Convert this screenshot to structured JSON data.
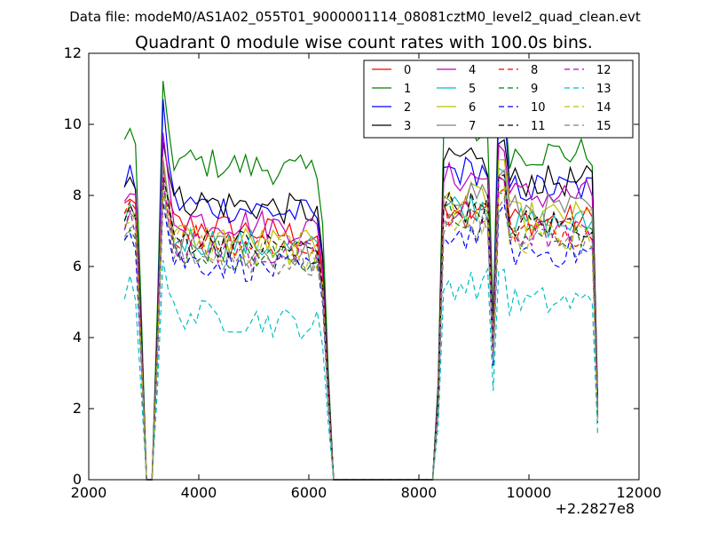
{
  "suptitle": "Data file: modeM0/AS1A02_055T01_9000001114_08081cztM0_level2_quad_clean.evt",
  "chart_data": {
    "type": "line",
    "title": "Quadrant 0 module wise count rates with 100.0s bins.",
    "xlabel": "",
    "ylabel": "",
    "xlim": [
      2000,
      12000
    ],
    "ylim": [
      0,
      12
    ],
    "x_offset_label": "+2.2827e8",
    "xticks": [
      2000,
      4000,
      6000,
      8000,
      10000,
      12000
    ],
    "xtick_labels": [
      "2000",
      "4000",
      "6000",
      "8000",
      "10000",
      "12000"
    ],
    "yticks": [
      0,
      2,
      4,
      6,
      8,
      10,
      12
    ],
    "ytick_labels": [
      "0",
      "2",
      "4",
      "6",
      "8",
      "10",
      "12"
    ],
    "legend_position": "top-right",
    "series": [
      {
        "name": "0",
        "color": "#ff0000",
        "dash": "solid",
        "base": 7.2,
        "peak": 8.6,
        "late": 7.3
      },
      {
        "name": "1",
        "color": "#008000",
        "dash": "solid",
        "base": 9.0,
        "peak": 11.0,
        "late": 9.2
      },
      {
        "name": "2",
        "color": "#0000ff",
        "dash": "solid",
        "base": 7.8,
        "peak": 10.6,
        "late": 8.2
      },
      {
        "name": "3",
        "color": "#000000",
        "dash": "solid",
        "base": 7.9,
        "peak": 9.7,
        "late": 8.4
      },
      {
        "name": "4",
        "color": "#bf00bf",
        "dash": "solid",
        "base": 7.4,
        "peak": 9.6,
        "late": 8.0
      },
      {
        "name": "5",
        "color": "#00bfbf",
        "dash": "solid",
        "base": 6.8,
        "peak": 9.0,
        "late": 7.2
      },
      {
        "name": "6",
        "color": "#bfbf00",
        "dash": "solid",
        "base": 6.9,
        "peak": 9.2,
        "late": 7.4
      },
      {
        "name": "7",
        "color": "#808080",
        "dash": "solid",
        "base": 6.6,
        "peak": 8.8,
        "late": 7.6
      },
      {
        "name": "8",
        "color": "#ff0000",
        "dash": "dashed",
        "base": 6.9,
        "peak": 8.4,
        "late": 7.0
      },
      {
        "name": "9",
        "color": "#008000",
        "dash": "dashed",
        "base": 6.5,
        "peak": 8.2,
        "late": 6.9
      },
      {
        "name": "10",
        "color": "#0000ff",
        "dash": "dashed",
        "base": 6.2,
        "peak": 7.8,
        "late": 6.4
      },
      {
        "name": "11",
        "color": "#000000",
        "dash": "dashed",
        "base": 6.8,
        "peak": 8.6,
        "late": 7.2
      },
      {
        "name": "12",
        "color": "#bf00bf",
        "dash": "dashed",
        "base": 6.6,
        "peak": 8.5,
        "late": 6.9
      },
      {
        "name": "13",
        "color": "#00bfbf",
        "dash": "dashed",
        "base": 4.7,
        "peak": 6.0,
        "late": 5.0
      },
      {
        "name": "14",
        "color": "#bfbf00",
        "dash": "dashed",
        "base": 6.7,
        "peak": 8.3,
        "late": 6.8
      },
      {
        "name": "15",
        "color": "#808080",
        "dash": "dashed",
        "base": 6.4,
        "peak": 8.0,
        "late": 6.7
      }
    ]
  }
}
